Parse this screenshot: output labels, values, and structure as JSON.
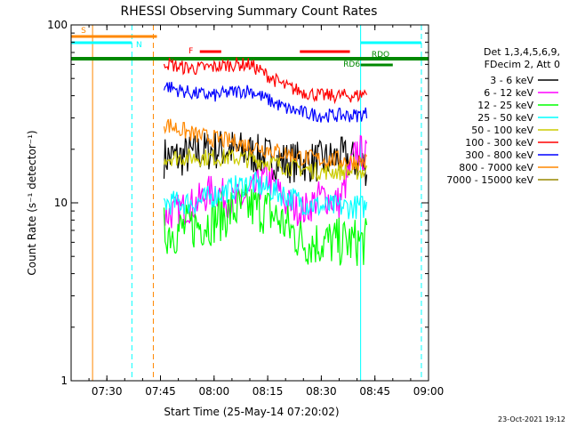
{
  "chart_data": {
    "type": "line",
    "title": "RHESSI Observing Summary Count Rates",
    "xlabel": "Start Time (25-May-14 07:20:02)",
    "ylabel": "Count Rate (s⁻¹ detector⁻¹)",
    "yscale": "log",
    "ylim": [
      1,
      100
    ],
    "xlim": [
      "07:20",
      "09:00"
    ],
    "grid": false,
    "legend_position": "right",
    "x_ticks": [
      "07:30",
      "07:45",
      "08:00",
      "08:15",
      "08:30",
      "08:45",
      "09:00"
    ],
    "y_ticks": [
      "1",
      "10",
      "100"
    ],
    "legend_header": [
      "Det 1,3,4,5,6,9,",
      "FDecim 2, Att 0"
    ],
    "footer_date": "23-Oct-2021 19:12",
    "series": [
      {
        "name": "3 - 6 keV",
        "color": "#000000",
        "x": [
          "07:46",
          "07:50",
          "07:55",
          "08:00",
          "08:05",
          "08:10",
          "08:15",
          "08:20",
          "08:25",
          "08:30",
          "08:35",
          "08:40",
          "08:43"
        ],
        "y": [
          18,
          18,
          19,
          20,
          20,
          19,
          18,
          17,
          17,
          17,
          18,
          17,
          16
        ]
      },
      {
        "name": "6 - 12 keV",
        "color": "#ff00ff",
        "x": [
          "07:46",
          "07:50",
          "07:55",
          "08:00",
          "08:05",
          "08:10",
          "08:15",
          "08:20",
          "08:25",
          "08:30",
          "08:35",
          "08:40",
          "08:43"
        ],
        "y": [
          8.5,
          9,
          10,
          12,
          10,
          11,
          14,
          10,
          9,
          11,
          10,
          20,
          18
        ]
      },
      {
        "name": "12 - 25 keV",
        "color": "#00ff00",
        "x": [
          "07:46",
          "07:50",
          "07:55",
          "08:00",
          "08:05",
          "08:10",
          "08:15",
          "08:20",
          "08:25",
          "08:30",
          "08:35",
          "08:40",
          "08:43"
        ],
        "y": [
          7,
          7,
          7.5,
          8,
          9,
          9.5,
          9,
          7.5,
          6,
          6,
          6,
          6,
          6
        ]
      },
      {
        "name": "25 - 50 keV",
        "color": "#00ffff",
        "x": [
          "07:46",
          "07:50",
          "07:55",
          "08:00",
          "08:05",
          "08:10",
          "08:15",
          "08:20",
          "08:25",
          "08:30",
          "08:35",
          "08:40",
          "08:43"
        ],
        "y": [
          10,
          10,
          10,
          11,
          12,
          13,
          12,
          11,
          10,
          9.5,
          9.5,
          9.5,
          9.5
        ]
      },
      {
        "name": "50 - 100 keV",
        "color": "#cccc00",
        "x": [
          "07:46",
          "07:50",
          "07:55",
          "08:00",
          "08:05",
          "08:10",
          "08:15",
          "08:20",
          "08:25",
          "08:30",
          "08:35",
          "08:40",
          "08:43"
        ],
        "y": [
          18,
          18,
          18,
          18,
          18,
          17.5,
          17,
          16,
          15.5,
          15,
          15,
          15,
          15
        ]
      },
      {
        "name": "100 - 300 keV",
        "color": "#ff0000",
        "x": [
          "07:46",
          "07:50",
          "07:55",
          "08:00",
          "08:05",
          "08:10",
          "08:15",
          "08:20",
          "08:25",
          "08:30",
          "08:35",
          "08:40",
          "08:43"
        ],
        "y": [
          62,
          58,
          57,
          58,
          60,
          60,
          52,
          45,
          42,
          40,
          40,
          40,
          42
        ]
      },
      {
        "name": "300 - 800 keV",
        "color": "#0000ff",
        "x": [
          "07:46",
          "07:50",
          "07:55",
          "08:00",
          "08:05",
          "08:10",
          "08:15",
          "08:20",
          "08:25",
          "08:30",
          "08:35",
          "08:40",
          "08:43"
        ],
        "y": [
          46,
          43,
          41,
          40,
          42,
          43,
          38,
          34,
          32,
          31,
          31,
          31,
          32
        ]
      },
      {
        "name": "800 - 7000 keV",
        "color": "#ff8800",
        "x": [
          "07:46",
          "07:50",
          "07:55",
          "08:00",
          "08:05",
          "08:10",
          "08:15",
          "08:20",
          "08:25",
          "08:30",
          "08:35",
          "08:40",
          "08:43"
        ],
        "y": [
          28,
          26,
          24,
          23,
          22,
          21,
          20,
          19,
          18,
          17.5,
          17.5,
          17,
          17
        ]
      },
      {
        "name": "7000 - 15000 keV",
        "color": "#998800",
        "x": [],
        "y": []
      }
    ],
    "attenuator_segments": [
      {
        "label": "S",
        "color": "#ff8800",
        "x0": "07:20",
        "x1": "07:44"
      }
    ],
    "flag_bars": [
      {
        "label": "N",
        "color": "#00ffff",
        "x0": "07:20",
        "x1": "07:37"
      },
      {
        "label": "N",
        "color": "#00ffff",
        "x0": "08:41",
        "x1": "08:58"
      },
      {
        "label": "F",
        "color": "#ff0000",
        "x0": "07:56",
        "x1": "08:02"
      },
      {
        "label": "F",
        "color": "#ff0000",
        "x0": "08:24",
        "x1": "08:38"
      },
      {
        "label": "RDO",
        "color": "#008800",
        "x0": "07:20",
        "x1": "09:00"
      },
      {
        "label": "RD6",
        "color": "#008800",
        "x0": "08:41",
        "x1": "08:50"
      }
    ],
    "vertical_markers": [
      {
        "color": "#00ffff",
        "style": "solid",
        "x": "07:20"
      },
      {
        "color": "#ff8800",
        "style": "solid",
        "x": "07:26"
      },
      {
        "color": "#00ffff",
        "style": "dashed",
        "x": "07:37"
      },
      {
        "color": "#ff8800",
        "style": "dashed",
        "x": "07:43"
      },
      {
        "color": "#00ffff",
        "style": "solid",
        "x": "08:41"
      },
      {
        "color": "#00ffff",
        "style": "dashed",
        "x": "08:58"
      }
    ]
  }
}
